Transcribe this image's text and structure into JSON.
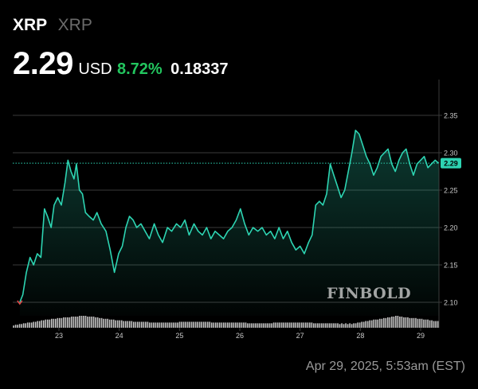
{
  "header": {
    "symbol": "XRP",
    "name": "XRP",
    "price": "2.29",
    "currency": "USD",
    "change_percent": "8.72%",
    "change_value": "0.18337"
  },
  "watermark": "FINBOLD",
  "timestamp": "Apr 29, 2025, 5:53am (EST)",
  "colors": {
    "line": "#2dd4b2",
    "positive": "#22c55e",
    "volume": "#d9d9d9",
    "grid": "#3a3a3a",
    "background": "#000000"
  },
  "chart_data": {
    "type": "area",
    "x_labels": [
      "23",
      "24",
      "25",
      "26",
      "27",
      "28",
      "29"
    ],
    "ylim": [
      2.08,
      2.38
    ],
    "y_ticks": [
      "2.10",
      "2.15",
      "2.20",
      "2.25",
      "2.30",
      "2.35"
    ],
    "current_price_label": "2.29",
    "current_price": 2.286,
    "grid": true,
    "series": [
      {
        "type": "line",
        "x": [
          22.35,
          22.4,
          22.46,
          22.52,
          22.58,
          22.64,
          22.7,
          22.76,
          22.81,
          22.87,
          22.92,
          22.98,
          23.04,
          23.1,
          23.15,
          23.2,
          23.25,
          23.29,
          23.34,
          23.39,
          23.44,
          23.5,
          23.57,
          23.63,
          23.7,
          23.78,
          23.85,
          23.92,
          23.99,
          24.05,
          24.11,
          24.17,
          24.23,
          24.29,
          24.36,
          24.43,
          24.5,
          24.58,
          24.65,
          24.72,
          24.8,
          24.87,
          24.95,
          25.02,
          25.09,
          25.16,
          25.24,
          25.31,
          25.38,
          25.45,
          25.52,
          25.59,
          25.66,
          25.73,
          25.8,
          25.87,
          25.94,
          26.01,
          26.08,
          26.15,
          26.22,
          26.3,
          26.37,
          26.44,
          26.51,
          26.58,
          26.65,
          26.72,
          26.79,
          26.86,
          26.93,
          27.0,
          27.07,
          27.14,
          27.2,
          27.26,
          27.32,
          27.38,
          27.44,
          27.5,
          27.56,
          27.62,
          27.68,
          27.74,
          27.8,
          27.86,
          27.92,
          27.98,
          28.04,
          28.1,
          28.16,
          28.22,
          28.28,
          28.34,
          28.4,
          28.46,
          28.52,
          28.58,
          28.64,
          28.7,
          28.76,
          28.82,
          28.88,
          28.94,
          29.0,
          29.06,
          29.12,
          29.18,
          29.24,
          29.3
        ],
        "values": [
          2.1,
          2.11,
          2.14,
          2.16,
          2.15,
          2.165,
          2.16,
          2.225,
          2.215,
          2.2,
          2.23,
          2.24,
          2.23,
          2.26,
          2.29,
          2.275,
          2.265,
          2.285,
          2.25,
          2.245,
          2.22,
          2.215,
          2.21,
          2.22,
          2.205,
          2.195,
          2.17,
          2.14,
          2.165,
          2.175,
          2.2,
          2.215,
          2.21,
          2.2,
          2.205,
          2.195,
          2.185,
          2.205,
          2.19,
          2.18,
          2.2,
          2.195,
          2.205,
          2.2,
          2.21,
          2.19,
          2.205,
          2.195,
          2.19,
          2.2,
          2.185,
          2.195,
          2.19,
          2.185,
          2.195,
          2.2,
          2.21,
          2.225,
          2.205,
          2.19,
          2.2,
          2.195,
          2.2,
          2.19,
          2.195,
          2.185,
          2.2,
          2.185,
          2.195,
          2.18,
          2.17,
          2.175,
          2.165,
          2.18,
          2.19,
          2.23,
          2.235,
          2.23,
          2.245,
          2.285,
          2.27,
          2.255,
          2.24,
          2.25,
          2.275,
          2.3,
          2.33,
          2.325,
          2.31,
          2.295,
          2.285,
          2.27,
          2.28,
          2.295,
          2.3,
          2.305,
          2.285,
          2.275,
          2.29,
          2.3,
          2.305,
          2.285,
          2.27,
          2.285,
          2.29,
          2.295,
          2.28,
          2.285,
          2.29,
          2.286
        ]
      },
      {
        "type": "volume",
        "values": [
          3,
          4,
          4,
          5,
          5,
          6,
          6,
          7,
          7,
          7,
          8,
          8,
          9,
          9,
          10,
          10,
          11,
          11,
          11,
          12,
          12,
          12,
          13,
          13,
          13,
          14,
          14,
          14,
          14,
          15,
          15,
          15,
          15,
          16,
          16,
          16,
          16,
          15,
          15,
          15,
          15,
          14,
          14,
          13,
          13,
          12,
          12,
          12,
          11,
          11,
          11,
          10,
          10,
          10,
          10,
          9,
          9,
          9,
          9,
          9,
          8,
          8,
          8,
          8,
          8,
          8,
          8,
          8,
          7,
          7,
          7,
          7,
          7,
          7,
          7,
          7,
          7,
          7,
          7,
          7,
          7,
          7,
          7,
          8,
          8,
          8,
          8,
          8,
          8,
          8,
          8,
          8,
          8,
          8,
          8,
          8,
          8,
          8,
          8,
          7,
          7,
          7,
          7,
          7,
          7,
          7,
          7,
          7,
          7,
          7,
          7,
          7,
          7,
          7,
          7,
          7,
          7,
          6,
          6,
          6,
          6,
          6,
          6,
          6,
          6,
          6,
          6,
          6,
          6,
          6,
          7,
          7,
          7,
          7,
          7,
          7,
          7,
          7,
          7,
          7,
          7,
          7,
          7,
          7,
          7,
          7,
          7,
          7,
          7,
          7,
          6,
          6,
          6,
          6,
          6,
          6,
          6,
          6,
          6,
          6,
          6,
          6,
          6,
          5,
          6,
          5,
          6,
          5,
          6,
          5,
          6,
          6,
          7,
          7,
          8,
          8,
          9,
          9,
          10,
          10,
          11,
          11,
          11,
          12,
          12,
          13,
          13,
          14,
          14,
          15,
          15,
          16,
          16,
          15,
          15,
          14,
          14,
          14,
          13,
          13,
          13,
          13,
          12,
          12,
          12,
          11,
          11,
          11,
          10,
          10,
          9,
          9,
          9
        ]
      }
    ]
  }
}
